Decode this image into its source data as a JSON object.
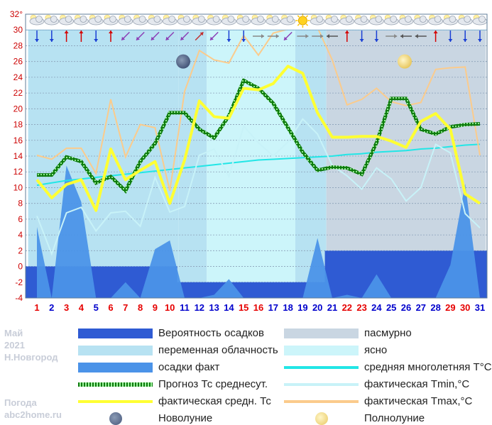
{
  "info": {
    "month": "Май",
    "year": "2021",
    "city": "Н.Новгород",
    "source_line1": "Погода",
    "source_line2": "abc2home.ru"
  },
  "colors": {
    "overcast": "#c9d6e2",
    "variable": "#b7e2f2",
    "clear": "#ccf5fa",
    "precip_prob": "#2f5bd3",
    "precip_fact": "#4b93e8",
    "forecast": "#1a9c1a",
    "fact_avg": "#ffff33",
    "normal": "#22e6e6",
    "tmin": "#c8f2f8",
    "tmax": "#fbcb8c",
    "red_day": "#e60000",
    "blue_day": "#0000cc"
  },
  "legend": [
    {
      "label": "Вероятность осадков",
      "style": "precip_prob",
      "icon": "bar-swatch"
    },
    {
      "label": "пасмурно",
      "style": "overcast",
      "icon": "bar-swatch"
    },
    {
      "label": "переменная облачность",
      "style": "variable",
      "icon": "bar-swatch"
    },
    {
      "label": "ясно",
      "style": "clear",
      "icon": "bar-swatch"
    },
    {
      "label": "осадки факт",
      "style": "precip_fact",
      "icon": "bar-swatch"
    },
    {
      "label": "средняя многолетняя T°C",
      "style": "normal",
      "icon": "line-swatch"
    },
    {
      "label": "Прогноз Тс среднесут.",
      "style": "forecast",
      "icon": "dotted-line-swatch"
    },
    {
      "label": "фактическая Tmin,°C",
      "style": "tmin",
      "icon": "line-swatch"
    },
    {
      "label": "фактическая средн. Тс",
      "style": "fact_avg",
      "icon": "line-swatch"
    },
    {
      "label": "фактическая Tmax,°C",
      "style": "tmax",
      "icon": "line-swatch"
    },
    {
      "label": "Новолуние",
      "style": "new_moon",
      "icon": "new-moon-icon"
    },
    {
      "label": "Полнолуние",
      "style": "full_moon",
      "icon": "full-moon-icon"
    }
  ],
  "chart_data": {
    "type": "line",
    "ylim": [
      -4,
      32
    ],
    "yticks": [
      -4,
      -2,
      0,
      2,
      4,
      6,
      8,
      10,
      12,
      14,
      16,
      18,
      20,
      22,
      24,
      26,
      28,
      30,
      32
    ],
    "ytick_labels": [
      "-4",
      "-2",
      "0",
      "2",
      "4",
      "6",
      "8",
      "10",
      "12",
      "14",
      "16",
      "18",
      "20",
      "22",
      "24",
      "26",
      "28",
      "30",
      "32°"
    ],
    "x": [
      1,
      2,
      3,
      4,
      5,
      6,
      7,
      8,
      9,
      10,
      11,
      12,
      13,
      14,
      15,
      16,
      17,
      18,
      19,
      20,
      21,
      22,
      23,
      24,
      25,
      26,
      27,
      28,
      29,
      30,
      31
    ],
    "day_colors": [
      "red",
      "blue",
      "red",
      "red",
      "blue",
      "red",
      "red",
      "red",
      "red",
      "red",
      "blue",
      "blue",
      "blue",
      "blue",
      "red",
      "red",
      "blue",
      "blue",
      "blue",
      "blue",
      "blue",
      "red",
      "red",
      "blue",
      "blue",
      "blue",
      "blue",
      "blue",
      "red",
      "red",
      "blue"
    ],
    "cloudiness": [
      {
        "type": "variable",
        "from": 1,
        "to": 10.6
      },
      {
        "type": "variable",
        "from": 10.6,
        "to": 12.5
      },
      {
        "type": "clear",
        "from": 12.5,
        "to": 18.5
      },
      {
        "type": "variable",
        "from": 18.5,
        "to": 20.6
      },
      {
        "type": "overcast",
        "from": 20.6,
        "to": 31.4
      }
    ],
    "series": [
      {
        "name": "Вероятность осадков",
        "kind": "step",
        "values": [
          0,
          0,
          0,
          0,
          0,
          0,
          0,
          0,
          0,
          0,
          -2,
          -2,
          -2,
          -2,
          -2,
          -2,
          -2,
          -2,
          -2,
          -2,
          2,
          2,
          2,
          2,
          2,
          2,
          2,
          2,
          2,
          2,
          2
        ]
      },
      {
        "name": "осадки факт",
        "kind": "area",
        "values": [
          5,
          -4,
          12.8,
          8.2,
          -4,
          -4,
          -2,
          -4,
          2.2,
          3.3,
          -4,
          -4,
          -3.6,
          -1.6,
          -4,
          -4,
          -4,
          -4,
          -4,
          3.6,
          -4,
          -3.6,
          -4,
          -1,
          -4,
          -4,
          -4,
          -4,
          0.2,
          10.5,
          -4
        ]
      },
      {
        "name": "средняя многолетняя T°C",
        "kind": "line",
        "values": [
          10.3,
          10.6,
          10.9,
          11.1,
          11.3,
          11.5,
          11.7,
          11.9,
          12.1,
          12.3,
          12.5,
          12.7,
          12.9,
          13.1,
          13.3,
          13.5,
          13.6,
          13.7,
          13.8,
          13.9,
          14.0,
          14.2,
          14.3,
          14.5,
          14.6,
          14.7,
          14.9,
          15.0,
          15.2,
          15.4,
          15.5
        ]
      },
      {
        "name": "фактическая Tmax,°C",
        "kind": "line",
        "values": [
          14.1,
          13.6,
          15.0,
          15.0,
          11.8,
          21.2,
          13.9,
          18.0,
          17.6,
          9.6,
          22.2,
          27.4,
          26.2,
          25.8,
          29.3,
          26.8,
          29.6,
          30.1,
          30.7,
          30.3,
          26.2,
          20.5,
          21.2,
          22.6,
          20.9,
          20.4,
          20.8,
          25.0,
          25.2,
          25.3,
          14.1
        ]
      },
      {
        "name": "фактическая Tmin,°C",
        "kind": "line",
        "values": [
          6.4,
          1.6,
          6.8,
          7.5,
          4.5,
          6.8,
          7.0,
          5.1,
          11.3,
          6.9,
          7.6,
          14.1,
          14.9,
          11.4,
          17.8,
          15.7,
          14.0,
          15.8,
          18.7,
          16.8,
          12.8,
          11.5,
          9.8,
          12.5,
          11.1,
          8.3,
          10.0,
          15.5,
          14.4,
          6.7,
          4.9
        ]
      },
      {
        "name": "Прогноз Тс среднесут.",
        "kind": "line",
        "values": [
          11.6,
          11.6,
          13.9,
          13.3,
          10.6,
          11.4,
          9.6,
          13.3,
          15.6,
          19.5,
          19.5,
          17.4,
          16.3,
          19.1,
          23.6,
          22.6,
          20.7,
          17.6,
          14.5,
          12.2,
          12.6,
          12.5,
          11.7,
          15.7,
          21.3,
          21.3,
          17.4,
          16.8,
          17.7,
          18.0,
          18.1
        ]
      },
      {
        "name": "фактическая средн. Тс",
        "kind": "line",
        "values": [
          11.0,
          8.7,
          10.4,
          11.0,
          7.1,
          14.9,
          11.0,
          12.2,
          13.3,
          8.0,
          13.5,
          21.0,
          19.0,
          18.8,
          22.6,
          22.4,
          23.2,
          25.4,
          24.5,
          19.5,
          16.4,
          16.4,
          16.5,
          16.5,
          15.9,
          15.1,
          18.4,
          19.4,
          17.4,
          9.2,
          8.0
        ]
      }
    ],
    "moon_phases": [
      {
        "phase": "new",
        "day": 11,
        "value": 26
      },
      {
        "phase": "full",
        "day": 26,
        "value": 26
      }
    ],
    "weather_icons": [
      "cloudy",
      "cloudy",
      "cloudy",
      "cloudy",
      "cloudy",
      "cloudy",
      "cloudy",
      "cloudy",
      "cloudy",
      "cloudy",
      "cloudy",
      "cloudy",
      "cloudy",
      "cloudy",
      "cloudy",
      "cloudy",
      "cloudy",
      "cloudy",
      "sunny",
      "cloudy",
      "cloudy",
      "cloudy",
      "cloudy",
      "cloudy",
      "cloudy",
      "cloudy",
      "cloudy",
      "cloudy",
      "cloudy",
      "cloudy",
      "cloudy"
    ],
    "wind_arrows": [
      "down",
      "down",
      "up",
      "up",
      "down",
      "up",
      "down-left",
      "down-left",
      "down-left",
      "down-left",
      "down-left",
      "up-right",
      "down-left",
      "down",
      "down",
      "right",
      "right",
      "down-left",
      "right",
      "right",
      "left",
      "up",
      "down",
      "down",
      "right",
      "left",
      "left",
      "up",
      "down",
      "down",
      "down"
    ],
    "grid": true
  }
}
